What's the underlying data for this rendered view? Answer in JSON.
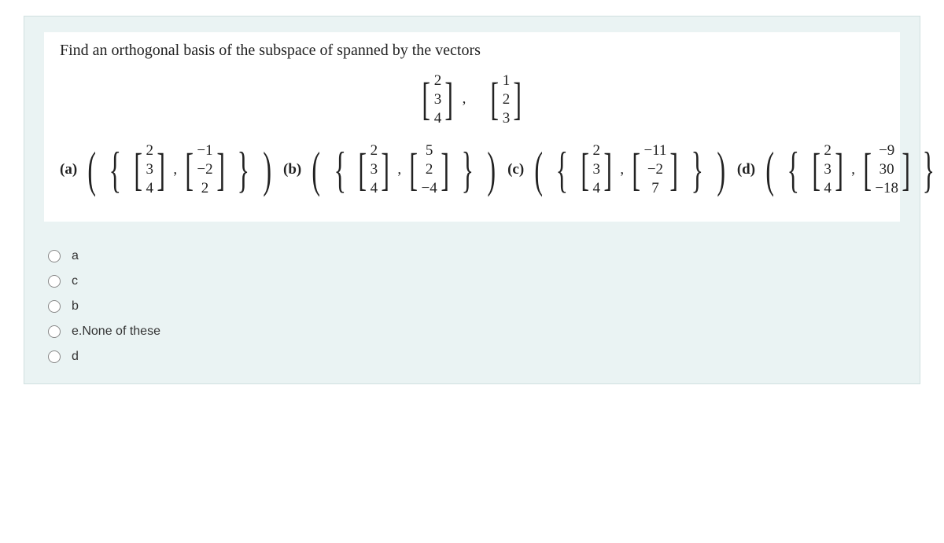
{
  "question": {
    "prompt": "Find an orthogonal basis of the subspace of spanned by the vectors",
    "given_vectors": [
      {
        "values": [
          "2",
          "3",
          "4"
        ]
      },
      {
        "values": [
          "1",
          "2",
          "3"
        ]
      }
    ],
    "options": [
      {
        "label": "(a)",
        "vectors": [
          {
            "values": [
              "2",
              "3",
              "4"
            ]
          },
          {
            "values": [
              "−1",
              "−2",
              "2"
            ]
          }
        ]
      },
      {
        "label": "(b)",
        "vectors": [
          {
            "values": [
              "2",
              "3",
              "4"
            ]
          },
          {
            "values": [
              "5",
              "2",
              "−4"
            ]
          }
        ]
      },
      {
        "label": "(c)",
        "vectors": [
          {
            "values": [
              "2",
              "3",
              "4"
            ]
          },
          {
            "values": [
              "−11",
              "−2",
              "7"
            ]
          }
        ]
      },
      {
        "label": "(d)",
        "vectors": [
          {
            "values": [
              "2",
              "3",
              "4"
            ]
          },
          {
            "values": [
              "−9",
              "30",
              "−18"
            ]
          }
        ]
      }
    ]
  },
  "answers": [
    {
      "text": "a"
    },
    {
      "text": "c"
    },
    {
      "text": "b"
    },
    {
      "text": "e.None of these"
    },
    {
      "text": "d"
    }
  ],
  "colors": {
    "container_bg": "#eaf3f3",
    "question_bg": "#ffffff",
    "text": "#222222"
  }
}
